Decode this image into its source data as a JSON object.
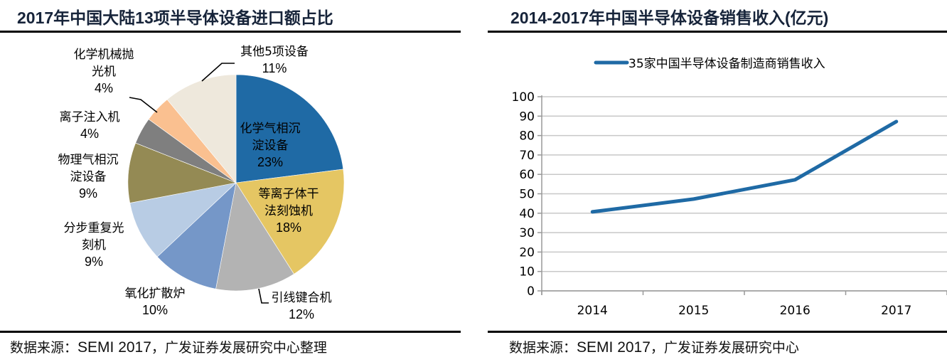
{
  "chart_data": [
    {
      "type": "pie",
      "title": "2017年中国大陆13项半导体设备进口额占比",
      "slices": [
        {
          "label": "化学气相沉淀设备",
          "label_lines": [
            "化学气相沉",
            "淀设备"
          ],
          "value": 23,
          "display": "23%",
          "color": "#1f6aa5"
        },
        {
          "label": "等离子体干法刻蚀机",
          "label_lines": [
            "等离子体干",
            "法刻蚀机"
          ],
          "value": 18,
          "display": "18%",
          "color": "#e5c663"
        },
        {
          "label": "引线键合机",
          "label_lines": [
            "引线键合机"
          ],
          "value": 12,
          "display": "12%",
          "color": "#b3b3b3"
        },
        {
          "label": "氧化扩散炉",
          "label_lines": [
            "氧化扩散炉"
          ],
          "value": 10,
          "display": "10%",
          "color": "#7597c8"
        },
        {
          "label": "分步重复光刻机",
          "label_lines": [
            "分步重复光",
            "刻机"
          ],
          "value": 9,
          "display": "9%",
          "color": "#b8cce4"
        },
        {
          "label": "物理气相沉淀设备",
          "label_lines": [
            "物理气相沉",
            "淀设备"
          ],
          "value": 9,
          "display": "9%",
          "color": "#948a54"
        },
        {
          "label": "离子注入机",
          "label_lines": [
            "离子注入机"
          ],
          "value": 4,
          "display": "4%",
          "color": "#7f7f7f"
        },
        {
          "label": "化学机械抛光机",
          "label_lines": [
            "化学机械抛",
            "光机"
          ],
          "value": 4,
          "display": "4%",
          "color": "#fac090"
        },
        {
          "label": "其他5项设备",
          "label_lines": [
            "其他5项设备"
          ],
          "value": 11,
          "display": "11%",
          "color": "#eee8dc"
        }
      ],
      "source": {
        "prefix": "数据来源：",
        "latin": "SEMI 2017",
        "suffix": "，广发证券发展研究中心整理"
      }
    },
    {
      "type": "line",
      "title": "2014-2017年中国半导体设备销售收入(亿元)",
      "categories": [
        "2014",
        "2015",
        "2016",
        "2017"
      ],
      "series": [
        {
          "name": "35家中国半导体设备制造商销售收入",
          "values": [
            40.7,
            47.3,
            57.2,
            87.2
          ],
          "color": "#1f6aa5"
        }
      ],
      "ylim": [
        0,
        100
      ],
      "yticks": [
        0,
        10,
        20,
        30,
        40,
        50,
        60,
        70,
        80,
        90,
        100
      ],
      "xlabel": "",
      "ylabel": "",
      "grid": true,
      "legend": "top-center",
      "source": {
        "prefix": "数据来源：",
        "latin": "SEMI 2017",
        "suffix": "，广发证券发展研究中心"
      }
    }
  ]
}
